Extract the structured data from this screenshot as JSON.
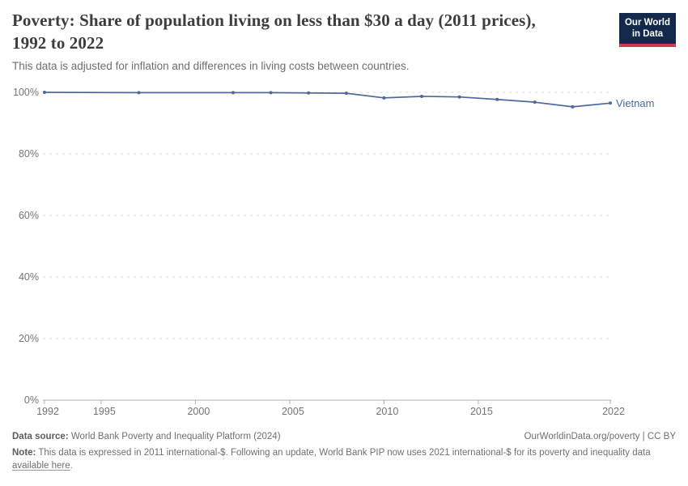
{
  "header": {
    "title": "Poverty: Share of population living on less than $30 a day (2011 prices), 1992 to 2022",
    "subtitle": "This data is adjusted for inflation and differences in living costs between countries.",
    "logo": {
      "line1": "Our World",
      "line2": "in Data"
    }
  },
  "chart_data": {
    "type": "line",
    "title": "Poverty: Share of population living on less than $30 a day (2011 prices), 1992 to 2022",
    "x": [
      1992,
      1997,
      2002,
      2004,
      2006,
      2008,
      2010,
      2012,
      2014,
      2016,
      2018,
      2020,
      2022
    ],
    "series": [
      {
        "name": "Vietnam",
        "values": [
          100.0,
          99.9,
          99.9,
          99.9,
          99.8,
          99.7,
          98.2,
          98.7,
          98.5,
          97.7,
          96.8,
          95.3,
          96.5
        ],
        "color": "#4c6a9c"
      }
    ],
    "xlabel": "",
    "ylabel": "",
    "xlim": [
      1992,
      2022
    ],
    "ylim": [
      0,
      100
    ],
    "xticks": [
      1992,
      1995,
      2000,
      2005,
      2010,
      2015,
      2022
    ],
    "yticks": [
      0,
      20,
      40,
      60,
      80,
      100
    ],
    "ytick_labels": [
      "0%",
      "20%",
      "40%",
      "60%",
      "80%",
      "100%"
    ],
    "grid": "horizontal-dashed",
    "legend_position": "end-of-line-label"
  },
  "footer": {
    "datasource_label": "Data source:",
    "datasource_text": " World Bank Poverty and Inequality Platform (2024)",
    "attribution": "OurWorldinData.org/poverty | CC BY",
    "note_label": "Note:",
    "note_text": " This data is expressed in 2011 international-$. Following an update, World Bank PIP now uses 2021 international-$ for its poverty and inequality data ",
    "note_link": "available here",
    "note_suffix": "."
  },
  "colors": {
    "line": "#4c6a9c",
    "gridline": "#dcdcdc",
    "axis": "#b0b0b0",
    "tick_label": "#737373",
    "logo_bg": "#12294b",
    "logo_accent": "#d0374b",
    "title_text": "#3d3d3d"
  }
}
